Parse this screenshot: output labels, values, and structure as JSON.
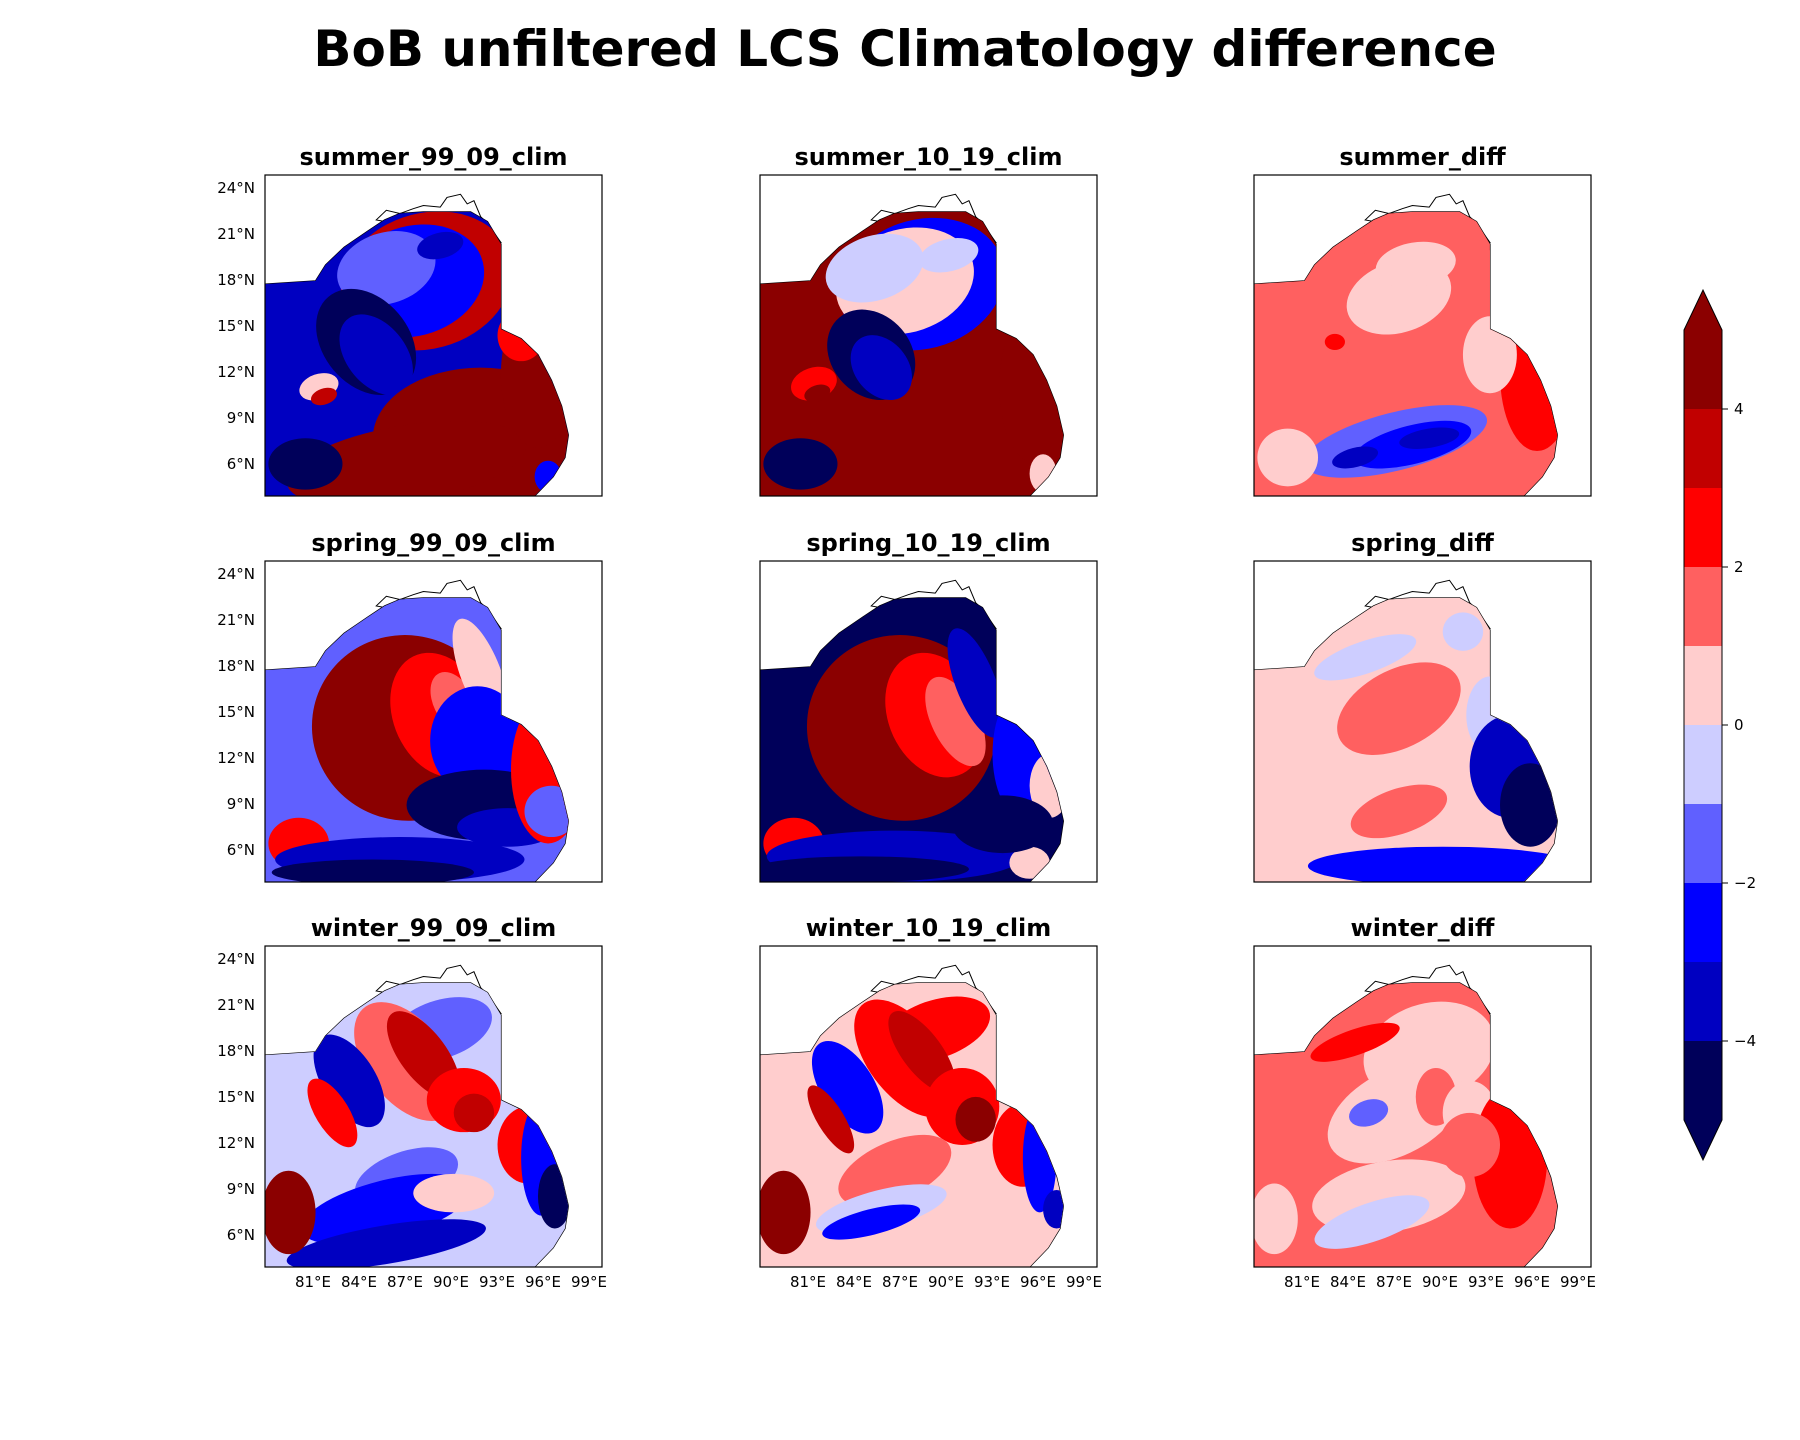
{
  "figure": {
    "title": "BoB unfiltered LCS Climatology difference"
  },
  "panels": [
    {
      "title": "summer_99_09_clim",
      "row": 0,
      "col": 0
    },
    {
      "title": "summer_10_19_clim",
      "row": 0,
      "col": 1
    },
    {
      "title": "summer_diff",
      "row": 0,
      "col": 2
    },
    {
      "title": "spring_99_09_clim",
      "row": 1,
      "col": 0
    },
    {
      "title": "spring_10_19_clim",
      "row": 1,
      "col": 1
    },
    {
      "title": "spring_diff",
      "row": 1,
      "col": 2
    },
    {
      "title": "winter_99_09_clim",
      "row": 2,
      "col": 0
    },
    {
      "title": "winter_10_19_clim",
      "row": 2,
      "col": 1
    },
    {
      "title": "winter_diff",
      "row": 2,
      "col": 2
    }
  ],
  "axes": {
    "lat_ticks": [
      "24°N",
      "21°N",
      "18°N",
      "15°N",
      "12°N",
      "9°N",
      "6°N"
    ],
    "lon_ticks": [
      "81°E",
      "84°E",
      "87°E",
      "90°E",
      "93°E",
      "96°E",
      "99°E"
    ]
  },
  "colorbar": {
    "ticks": [
      "4",
      "2",
      "0",
      "−2",
      "−4"
    ],
    "levels": [
      {
        "value": 5,
        "color": "#8b0000"
      },
      {
        "value": 4,
        "color": "#c10000"
      },
      {
        "value": 3,
        "color": "#ff0000"
      },
      {
        "value": 2,
        "color": "#ff6060"
      },
      {
        "value": 1,
        "color": "#ffcdcd"
      },
      {
        "value": 0,
        "color": "#cdcdff"
      },
      {
        "value": -1,
        "color": "#6060ff"
      },
      {
        "value": -2,
        "color": "#0000ff"
      },
      {
        "value": -3,
        "color": "#0000c1"
      },
      {
        "value": -4,
        "color": "#00005a"
      }
    ]
  },
  "colors": {
    "land": "#ffffff",
    "coastline": "#000000"
  }
}
